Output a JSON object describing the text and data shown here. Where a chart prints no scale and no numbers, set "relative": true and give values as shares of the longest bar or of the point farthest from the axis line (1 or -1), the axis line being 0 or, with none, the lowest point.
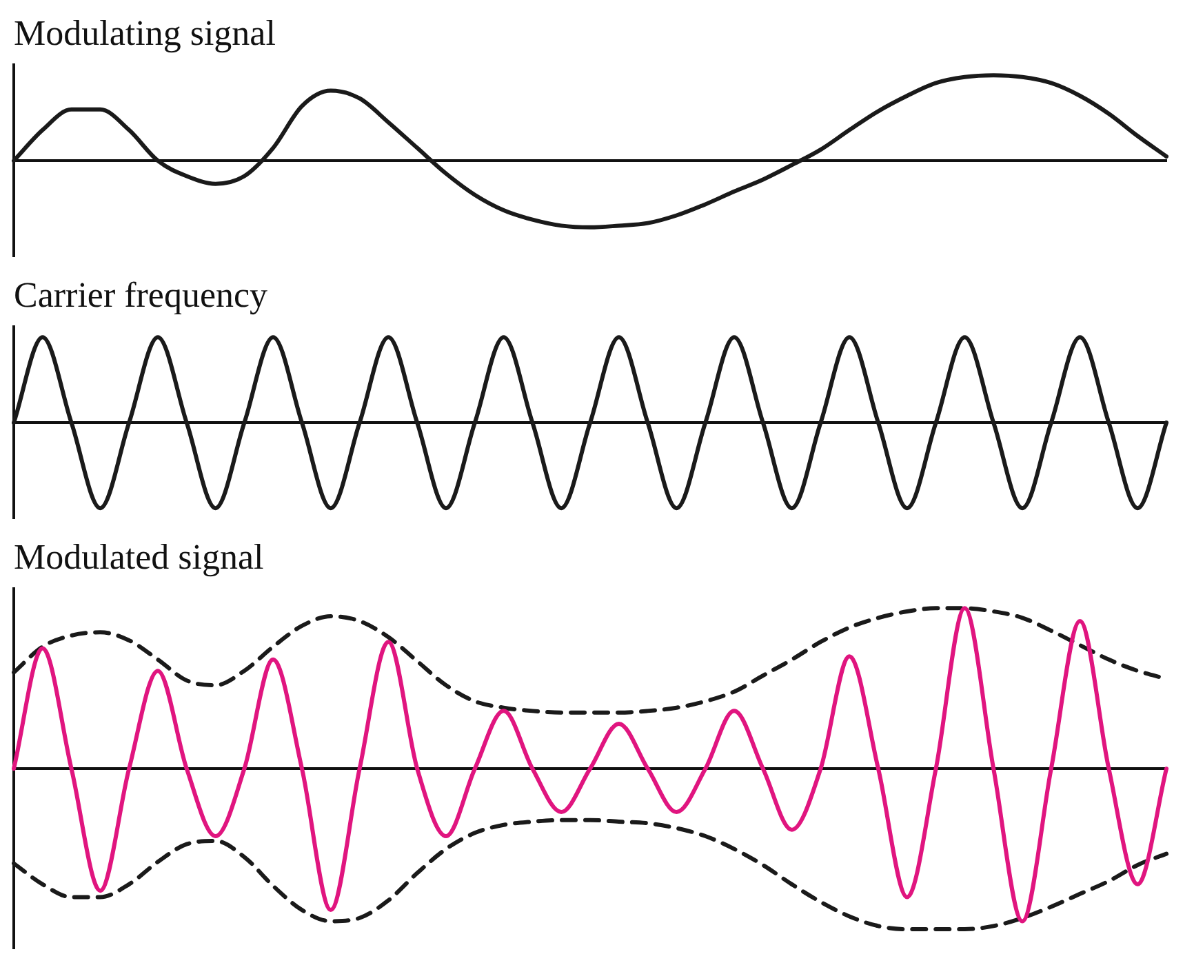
{
  "chart_data": [
    {
      "type": "line",
      "title": "Modulating signal",
      "relative": true,
      "marker": "none",
      "categories": [
        null,
        null,
        null,
        null,
        null,
        null,
        null,
        null,
        null,
        null,
        null,
        null,
        null,
        null,
        null,
        null,
        null,
        null,
        null,
        null,
        null,
        null,
        null,
        null,
        null,
        null,
        null,
        null,
        null,
        null,
        null,
        null,
        null,
        null,
        null,
        null,
        null,
        null,
        null,
        null,
        null
      ],
      "series": [
        {
          "color": "#1a1a1a",
          "line_style": "solid",
          "values": [
            0,
            0.36,
            0.6,
            0.6,
            0.36,
            0,
            -0.18,
            -0.27,
            -0.18,
            0.15,
            0.64,
            0.82,
            0.73,
            0.45,
            0.15,
            -0.15,
            -0.4,
            -0.58,
            -0.69,
            -0.76,
            -0.78,
            -0.76,
            -0.73,
            -0.64,
            -0.51,
            -0.36,
            -0.22,
            -0.05,
            0.13,
            0.36,
            0.58,
            0.76,
            0.91,
            0.98,
            1,
            0.98,
            0.91,
            0.76,
            0.55,
            0.29,
            0.05
          ]
        }
      ]
    },
    {
      "type": "line",
      "title": "Carrier frequency",
      "relative": true,
      "marker": "none",
      "categories": [
        null,
        null,
        null,
        null,
        null,
        null,
        null,
        null,
        null,
        null,
        null,
        null,
        null,
        null,
        null,
        null,
        null,
        null,
        null,
        null,
        null,
        null,
        null,
        null,
        null,
        null,
        null,
        null,
        null,
        null,
        null,
        null,
        null,
        null,
        null,
        null,
        null,
        null,
        null,
        null,
        null
      ],
      "series": [
        {
          "color": "#1a1a1a",
          "line_style": "solid",
          "values": [
            0,
            1,
            0,
            -1,
            0,
            1,
            0,
            -1,
            0,
            1,
            0,
            -1,
            0,
            1,
            0,
            -1,
            0,
            1,
            0,
            -1,
            0,
            1,
            0,
            -1,
            0,
            1,
            0,
            -1,
            0,
            1,
            0,
            -1,
            0,
            1,
            0,
            -1,
            0,
            1,
            0,
            -1,
            0
          ]
        }
      ]
    },
    {
      "type": "line",
      "title": "Modulated signal",
      "relative": true,
      "marker": "none",
      "categories": [
        null,
        null,
        null,
        null,
        null,
        null,
        null,
        null,
        null,
        null,
        null,
        null,
        null,
        null,
        null,
        null,
        null,
        null,
        null,
        null,
        null,
        null,
        null,
        null,
        null,
        null,
        null,
        null,
        null,
        null,
        null,
        null,
        null,
        null,
        null,
        null,
        null,
        null,
        null,
        null,
        null
      ],
      "series": [
        {
          "color": "#e0157f",
          "line_style": "solid",
          "values": [
            0,
            0.75,
            0,
            -0.76,
            0,
            0.61,
            0,
            -0.42,
            0,
            0.68,
            0,
            -0.88,
            0,
            0.79,
            0,
            -0.42,
            0,
            0.36,
            0,
            -0.27,
            0,
            0.28,
            0,
            -0.27,
            0,
            0.36,
            0,
            -0.38,
            0,
            0.7,
            0,
            -0.8,
            0,
            1,
            0,
            -0.95,
            0,
            0.92,
            0,
            -0.72,
            0
          ]
        },
        {
          "color": "#1a1a1a",
          "line_style": "dashed",
          "values": [
            0.6,
            0.76,
            0.83,
            0.85,
            0.8,
            0.68,
            0.55,
            0.52,
            0.61,
            0.76,
            0.89,
            0.95,
            0.92,
            0.82,
            0.67,
            0.52,
            0.42,
            0.38,
            0.36,
            0.35,
            0.35,
            0.35,
            0.36,
            0.38,
            0.42,
            0.48,
            0.58,
            0.68,
            0.79,
            0.88,
            0.94,
            0.98,
            1,
            1,
            0.98,
            0.94,
            0.86,
            0.77,
            0.68,
            0.61,
            0.56
          ]
        },
        {
          "color": "#1a1a1a",
          "line_style": "dashed",
          "values": [
            -0.59,
            -0.72,
            -0.8,
            -0.8,
            -0.72,
            -0.58,
            -0.47,
            -0.45,
            -0.55,
            -0.73,
            -0.88,
            -0.95,
            -0.93,
            -0.82,
            -0.65,
            -0.5,
            -0.4,
            -0.35,
            -0.33,
            -0.32,
            -0.32,
            -0.33,
            -0.34,
            -0.37,
            -0.42,
            -0.5,
            -0.6,
            -0.72,
            -0.83,
            -0.92,
            -0.98,
            -1,
            -1,
            -1,
            -0.98,
            -0.93,
            -0.86,
            -0.78,
            -0.7,
            -0.6,
            -0.53
          ]
        }
      ]
    }
  ]
}
